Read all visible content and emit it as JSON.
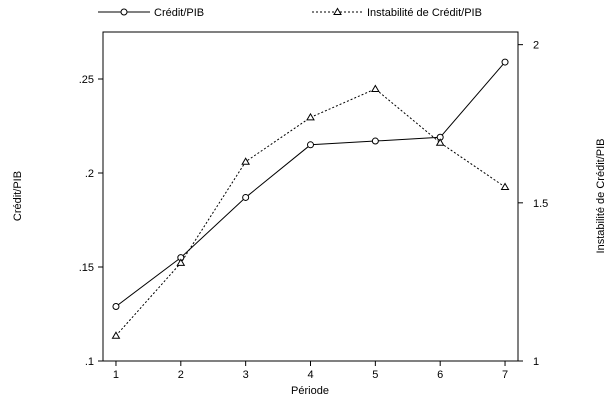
{
  "chart_data": {
    "type": "line",
    "x": [
      1,
      2,
      3,
      4,
      5,
      6,
      7
    ],
    "xlabel": "Période",
    "xlim": [
      0.8,
      7.2
    ],
    "x_ticks": [
      "1",
      "2",
      "3",
      "4",
      "5",
      "6",
      "7"
    ],
    "grid": false,
    "legend_position": "top",
    "series": [
      {
        "name": "Crédit/PIB",
        "axis": "left",
        "marker": "circle",
        "line_style": "solid",
        "values": [
          0.129,
          0.155,
          0.187,
          0.215,
          0.217,
          0.219,
          0.259
        ]
      },
      {
        "name": "Instabilité de Crédit/PIB",
        "axis": "right",
        "marker": "triangle",
        "line_style": "dotted",
        "values": [
          1.08,
          1.31,
          1.63,
          1.77,
          1.86,
          1.69,
          1.55
        ]
      }
    ],
    "y_left": {
      "label": "Crédit/PIB",
      "ylim": [
        0.1,
        0.275
      ],
      "ticks": [
        0.1,
        0.15,
        0.2,
        0.25
      ],
      "tick_labels": [
        ".1",
        ".15",
        ".2",
        ".25"
      ]
    },
    "y_right": {
      "label": "Instabilité de Crédit/PIB",
      "ylim": [
        1.0,
        2.04
      ],
      "ticks": [
        1,
        1.5,
        2
      ],
      "tick_labels": [
        "1",
        "1.5",
        "2"
      ]
    }
  },
  "colors": {
    "line": "#000000",
    "background": "#ffffff"
  }
}
